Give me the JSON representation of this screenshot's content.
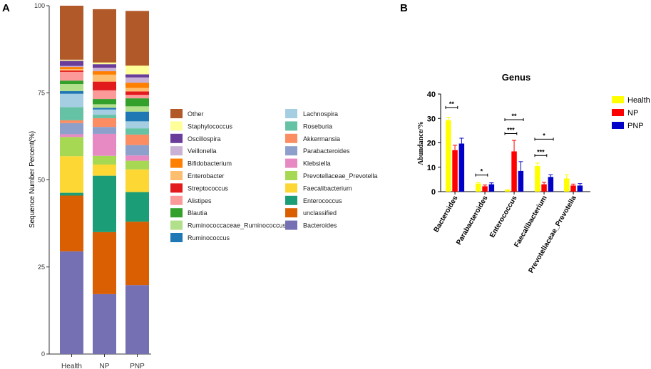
{
  "panel_a": {
    "label": "A"
  },
  "panel_b": {
    "label": "B"
  },
  "chart_data": [
    {
      "type": "bar",
      "stacked": true,
      "ylabel": "Sequence Number Percent(%)",
      "ylim": [
        0,
        100
      ],
      "yticks": [
        0,
        25,
        50,
        75,
        100
      ],
      "categories": [
        "Health",
        "NP",
        "PNP"
      ],
      "series": [
        {
          "name": "Bacteroides",
          "color": "#7570b3",
          "values": [
            29.5,
            17.2,
            19.8
          ]
        },
        {
          "name": "unclassified",
          "color": "#d95f02",
          "values": [
            16.0,
            17.8,
            18.2
          ]
        },
        {
          "name": "Enterococcus",
          "color": "#1b9e77",
          "values": [
            0.8,
            16.2,
            8.5
          ]
        },
        {
          "name": "Faecalibacterium",
          "color": "#fdd835",
          "values": [
            10.5,
            3.2,
            6.5
          ]
        },
        {
          "name": "Prevotellaceae_Prevotella",
          "color": "#a6d854",
          "values": [
            5.5,
            2.5,
            2.5
          ]
        },
        {
          "name": "Klebsiella",
          "color": "#e78ac3",
          "values": [
            0.8,
            6.3,
            1.5
          ]
        },
        {
          "name": "Parabacteroides",
          "color": "#8da0cb",
          "values": [
            3.2,
            2.0,
            3.0
          ]
        },
        {
          "name": "Akkermansia",
          "color": "#fc8d62",
          "values": [
            0.8,
            2.5,
            3.0
          ]
        },
        {
          "name": "Roseburia",
          "color": "#66c2a5",
          "values": [
            3.8,
            1.0,
            1.8
          ]
        },
        {
          "name": "Lachnospira",
          "color": "#a6cee3",
          "values": [
            3.8,
            1.5,
            2.0
          ]
        },
        {
          "name": "Ruminococcus",
          "color": "#1f78b4",
          "values": [
            0.8,
            0.5,
            2.8
          ]
        },
        {
          "name": "Ruminococcaceae_Ruminococcus",
          "color": "#b2df8a",
          "values": [
            2.0,
            1.0,
            1.5
          ]
        },
        {
          "name": "Blautia",
          "color": "#33a02c",
          "values": [
            1.0,
            1.5,
            2.3
          ]
        },
        {
          "name": "Alistipes",
          "color": "#fb9a99",
          "values": [
            2.5,
            2.5,
            1.0
          ]
        },
        {
          "name": "Streptococcus",
          "color": "#e31a1c",
          "values": [
            0.4,
            2.5,
            1.0
          ]
        },
        {
          "name": "Enterobacter",
          "color": "#fdbf6f",
          "values": [
            0.4,
            2.0,
            1.0
          ]
        },
        {
          "name": "Bifidobacterium",
          "color": "#ff7f00",
          "values": [
            0.6,
            1.0,
            1.5
          ]
        },
        {
          "name": "Veillonella",
          "color": "#cab2d6",
          "values": [
            0.3,
            1.0,
            1.5
          ]
        },
        {
          "name": "Oscillospira",
          "color": "#6a3d9a",
          "values": [
            1.5,
            1.0,
            0.9
          ]
        },
        {
          "name": "Staphylococcus",
          "color": "#ffff99",
          "values": [
            0.3,
            0.5,
            2.5
          ]
        },
        {
          "name": "Other",
          "color": "#b15928",
          "values": [
            15.5,
            15.3,
            15.7
          ]
        }
      ],
      "legend_left": [
        "Other",
        "Staphylococcus",
        "Oscillospira",
        "Veillonella",
        "Bifidobacterium",
        "Enterobacter",
        "Streptococcus",
        "Alistipes",
        "Blautia",
        "Ruminococcaceae_Ruminococcus",
        "Ruminococcus"
      ],
      "legend_right": [
        "Lachnospira",
        "Roseburia",
        "Akkermansia",
        "Parabacteroides",
        "Klebsiella",
        "Prevotellaceae_Prevotella",
        "Faecalibacterium",
        "Enterococcus",
        "unclassified",
        "Bacteroides"
      ]
    },
    {
      "type": "bar",
      "title": "Genus",
      "ylabel": "Abundance/%",
      "ylim": [
        0,
        40
      ],
      "yticks": [
        0,
        10,
        20,
        30,
        40
      ],
      "categories": [
        "Bacteroides",
        "Parabacteroides",
        "Enterococcus",
        "Faecalibacterium",
        "Prevotellaceae_Prevotella"
      ],
      "series": [
        {
          "name": "Health",
          "color": "#ffff00",
          "values": [
            29.3,
            3.3,
            0.6,
            10.5,
            5.4
          ],
          "errors": [
            1.2,
            0.4,
            0.2,
            1.2,
            1.5
          ]
        },
        {
          "name": "NP",
          "color": "#ff0000",
          "values": [
            17.0,
            2.2,
            16.5,
            3.0,
            2.5
          ],
          "errors": [
            2.0,
            0.5,
            4.5,
            0.8,
            0.6
          ]
        },
        {
          "name": "PNP",
          "color": "#0000c8",
          "values": [
            19.7,
            3.0,
            8.5,
            6.0,
            2.5
          ],
          "errors": [
            2.2,
            0.6,
            3.8,
            0.9,
            0.8
          ]
        }
      ],
      "significance": [
        {
          "category": 0,
          "from": 0,
          "to": 1,
          "y": 34.5,
          "label": "**"
        },
        {
          "category": 1,
          "from": 0,
          "to": 1,
          "y": 6.8,
          "label": "*"
        },
        {
          "category": 2,
          "from": 0,
          "to": 2,
          "y": 29.5,
          "label": "**"
        },
        {
          "category": 2,
          "from": 0,
          "to": 1,
          "y": 23.8,
          "label": "***"
        },
        {
          "category": 3,
          "from": 0,
          "to": 2,
          "y": 21.5,
          "label": "*"
        },
        {
          "category": 3,
          "from": 0,
          "to": 1,
          "y": 14.8,
          "label": "***"
        }
      ]
    }
  ]
}
